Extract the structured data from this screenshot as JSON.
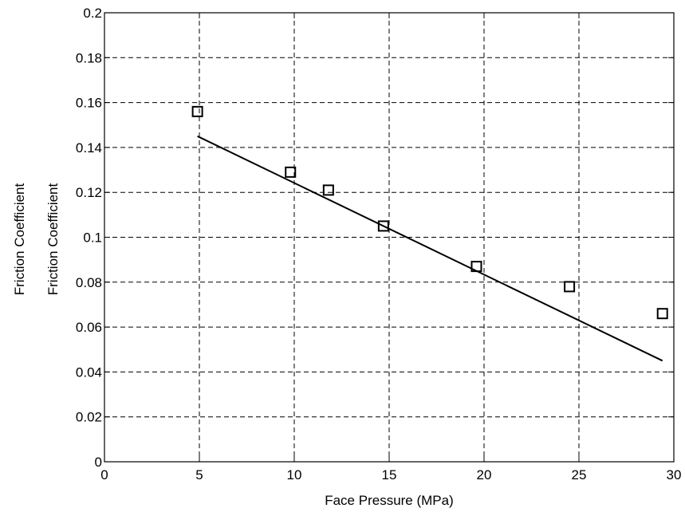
{
  "chart_data": {
    "type": "scatter",
    "title": "",
    "xlabel": "Face Pressure (MPa)",
    "ylabel": "Friction Coefficient",
    "ylabel_overlap": "Friction Coefficient",
    "xlim": [
      0,
      30
    ],
    "ylim": [
      0,
      0.2
    ],
    "grid": true,
    "x_ticks": [
      "0",
      "5",
      "10",
      "15",
      "20",
      "25",
      "30"
    ],
    "y_ticks": [
      "0",
      "0.02",
      "0.04",
      "0.06",
      "0.08",
      "0.1",
      "0.12",
      "0.14",
      "0.16",
      "0.18",
      "0.2"
    ],
    "series": [
      {
        "marker": "square",
        "x": [
          4.9,
          9.8,
          11.8,
          14.7,
          19.6,
          24.5,
          29.4
        ],
        "y": [
          0.156,
          0.129,
          0.121,
          0.105,
          0.087,
          0.078,
          0.066
        ]
      },
      {
        "line": "solid",
        "x": [
          4.9,
          29.4
        ],
        "y": [
          0.145,
          0.045
        ]
      }
    ],
    "colors": {
      "axis": "#000000",
      "grid": "#000000",
      "marker": "#000000",
      "line": "#000000"
    }
  }
}
